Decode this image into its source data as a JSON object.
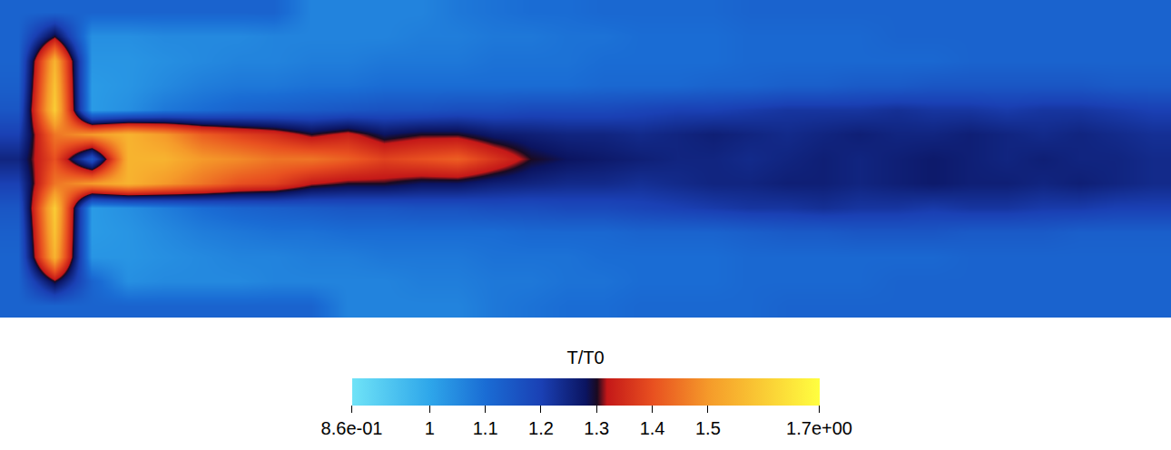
{
  "chart_data": {
    "type": "heatmap",
    "tick_labels": false,
    "x": [
      0,
      1,
      2,
      3,
      4,
      5,
      6,
      7,
      8,
      9,
      10,
      11,
      12,
      13,
      14,
      15,
      16,
      17,
      18,
      19,
      20,
      21,
      22,
      23,
      24,
      25,
      26,
      27,
      28,
      29,
      30,
      31
    ],
    "y": [
      0,
      1,
      2,
      3,
      4,
      5,
      6,
      7,
      8,
      9,
      10,
      11,
      12
    ],
    "xlim": [
      -0.5,
      31.5
    ],
    "ylim": [
      -0.5,
      12.5
    ],
    "z": [
      [
        1.12,
        1.12,
        1.12,
        1.12,
        1.12,
        1.12,
        1.12,
        1.12,
        1.06,
        1.06,
        1.06,
        1.06,
        1.08,
        1.09,
        1.1,
        1.1,
        1.11,
        1.11,
        1.11,
        1.11,
        1.12,
        1.12,
        1.12,
        1.12,
        1.12,
        1.12,
        1.12,
        1.12,
        1.12,
        1.12,
        1.12,
        1.12
      ],
      [
        1.12,
        1.3,
        1.04,
        1.04,
        1.05,
        1.05,
        1.05,
        1.06,
        1.06,
        1.06,
        1.06,
        1.07,
        1.07,
        1.08,
        1.08,
        1.09,
        1.09,
        1.1,
        1.1,
        1.1,
        1.11,
        1.11,
        1.11,
        1.11,
        1.12,
        1.12,
        1.12,
        1.12,
        1.12,
        1.12,
        1.12,
        1.12
      ],
      [
        1.12,
        1.55,
        1.03,
        1.03,
        1.04,
        1.05,
        1.06,
        1.06,
        1.07,
        1.07,
        1.08,
        1.08,
        1.08,
        1.09,
        1.09,
        1.09,
        1.1,
        1.1,
        1.1,
        1.1,
        1.11,
        1.11,
        1.11,
        1.11,
        1.11,
        1.11,
        1.12,
        1.12,
        1.12,
        1.12,
        1.12,
        1.12
      ],
      [
        1.13,
        1.58,
        1.02,
        1.03,
        1.05,
        1.07,
        1.08,
        1.08,
        1.09,
        1.09,
        1.1,
        1.1,
        1.1,
        1.1,
        1.1,
        1.1,
        1.11,
        1.11,
        1.11,
        1.12,
        1.12,
        1.13,
        1.13,
        1.14,
        1.14,
        1.15,
        1.15,
        1.15,
        1.15,
        1.15,
        1.14,
        1.14
      ],
      [
        1.15,
        1.6,
        1.02,
        1.04,
        1.08,
        1.1,
        1.12,
        1.13,
        1.14,
        1.15,
        1.16,
        1.16,
        1.17,
        1.17,
        1.18,
        1.18,
        1.18,
        1.19,
        1.2,
        1.2,
        1.21,
        1.22,
        1.22,
        1.22,
        1.23,
        1.22,
        1.22,
        1.21,
        1.22,
        1.22,
        1.21,
        1.2
      ],
      [
        1.2,
        1.45,
        1.5,
        1.55,
        1.5,
        1.42,
        1.38,
        1.35,
        1.3,
        1.33,
        1.28,
        1.3,
        1.3,
        1.27,
        1.26,
        1.25,
        1.25,
        1.24,
        1.25,
        1.26,
        1.25,
        1.24,
        1.25,
        1.26,
        1.25,
        1.25,
        1.26,
        1.25,
        1.24,
        1.25,
        1.24,
        1.23
      ],
      [
        1.25,
        1.4,
        1.15,
        1.55,
        1.55,
        1.5,
        1.48,
        1.45,
        1.45,
        1.42,
        1.38,
        1.4,
        1.42,
        1.36,
        1.3,
        1.28,
        1.27,
        1.26,
        1.25,
        1.25,
        1.24,
        1.25,
        1.26,
        1.25,
        1.26,
        1.27,
        1.26,
        1.25,
        1.26,
        1.25,
        1.25,
        1.24
      ],
      [
        1.2,
        1.45,
        1.5,
        1.55,
        1.5,
        1.45,
        1.4,
        1.38,
        1.32,
        1.3,
        1.3,
        1.28,
        1.28,
        1.26,
        1.25,
        1.24,
        1.24,
        1.23,
        1.24,
        1.25,
        1.25,
        1.26,
        1.26,
        1.25,
        1.26,
        1.27,
        1.26,
        1.26,
        1.25,
        1.26,
        1.25,
        1.24
      ],
      [
        1.15,
        1.6,
        1.02,
        1.04,
        1.07,
        1.1,
        1.12,
        1.13,
        1.14,
        1.15,
        1.15,
        1.16,
        1.16,
        1.17,
        1.17,
        1.18,
        1.18,
        1.19,
        1.2,
        1.21,
        1.22,
        1.22,
        1.23,
        1.22,
        1.22,
        1.21,
        1.22,
        1.22,
        1.21,
        1.21,
        1.2,
        1.2
      ],
      [
        1.13,
        1.58,
        1.02,
        1.03,
        1.05,
        1.07,
        1.08,
        1.09,
        1.09,
        1.1,
        1.1,
        1.1,
        1.1,
        1.1,
        1.11,
        1.11,
        1.11,
        1.12,
        1.12,
        1.12,
        1.13,
        1.14,
        1.14,
        1.15,
        1.15,
        1.15,
        1.14,
        1.14,
        1.14,
        1.13,
        1.13,
        1.13
      ],
      [
        1.12,
        1.55,
        1.03,
        1.03,
        1.04,
        1.05,
        1.06,
        1.06,
        1.07,
        1.07,
        1.08,
        1.08,
        1.08,
        1.09,
        1.09,
        1.09,
        1.1,
        1.1,
        1.1,
        1.1,
        1.11,
        1.11,
        1.11,
        1.11,
        1.11,
        1.11,
        1.12,
        1.12,
        1.12,
        1.12,
        1.12,
        1.12
      ],
      [
        1.12,
        1.3,
        1.12,
        1.04,
        1.05,
        1.05,
        1.05,
        1.06,
        1.06,
        1.06,
        1.06,
        1.07,
        1.07,
        1.08,
        1.08,
        1.09,
        1.09,
        1.1,
        1.1,
        1.1,
        1.11,
        1.11,
        1.11,
        1.11,
        1.12,
        1.12,
        1.12,
        1.12,
        1.12,
        1.12,
        1.12,
        1.12
      ],
      [
        1.12,
        1.12,
        1.12,
        1.12,
        1.12,
        1.12,
        1.12,
        1.12,
        1.12,
        1.06,
        1.06,
        1.06,
        1.06,
        1.08,
        1.09,
        1.1,
        1.1,
        1.11,
        1.11,
        1.11,
        1.11,
        1.12,
        1.12,
        1.12,
        1.12,
        1.12,
        1.12,
        1.12,
        1.12,
        1.12,
        1.12,
        1.12
      ]
    ],
    "colorbar": {
      "title": "T/T0",
      "range": [
        0.86,
        1.7
      ],
      "ticks": [
        {
          "value": 0.86,
          "label": "8.6e-01"
        },
        1,
        1.1,
        1.2,
        1.3,
        1.4,
        1.5,
        {
          "value": 1.7,
          "label": "1.7e+00"
        }
      ]
    }
  }
}
